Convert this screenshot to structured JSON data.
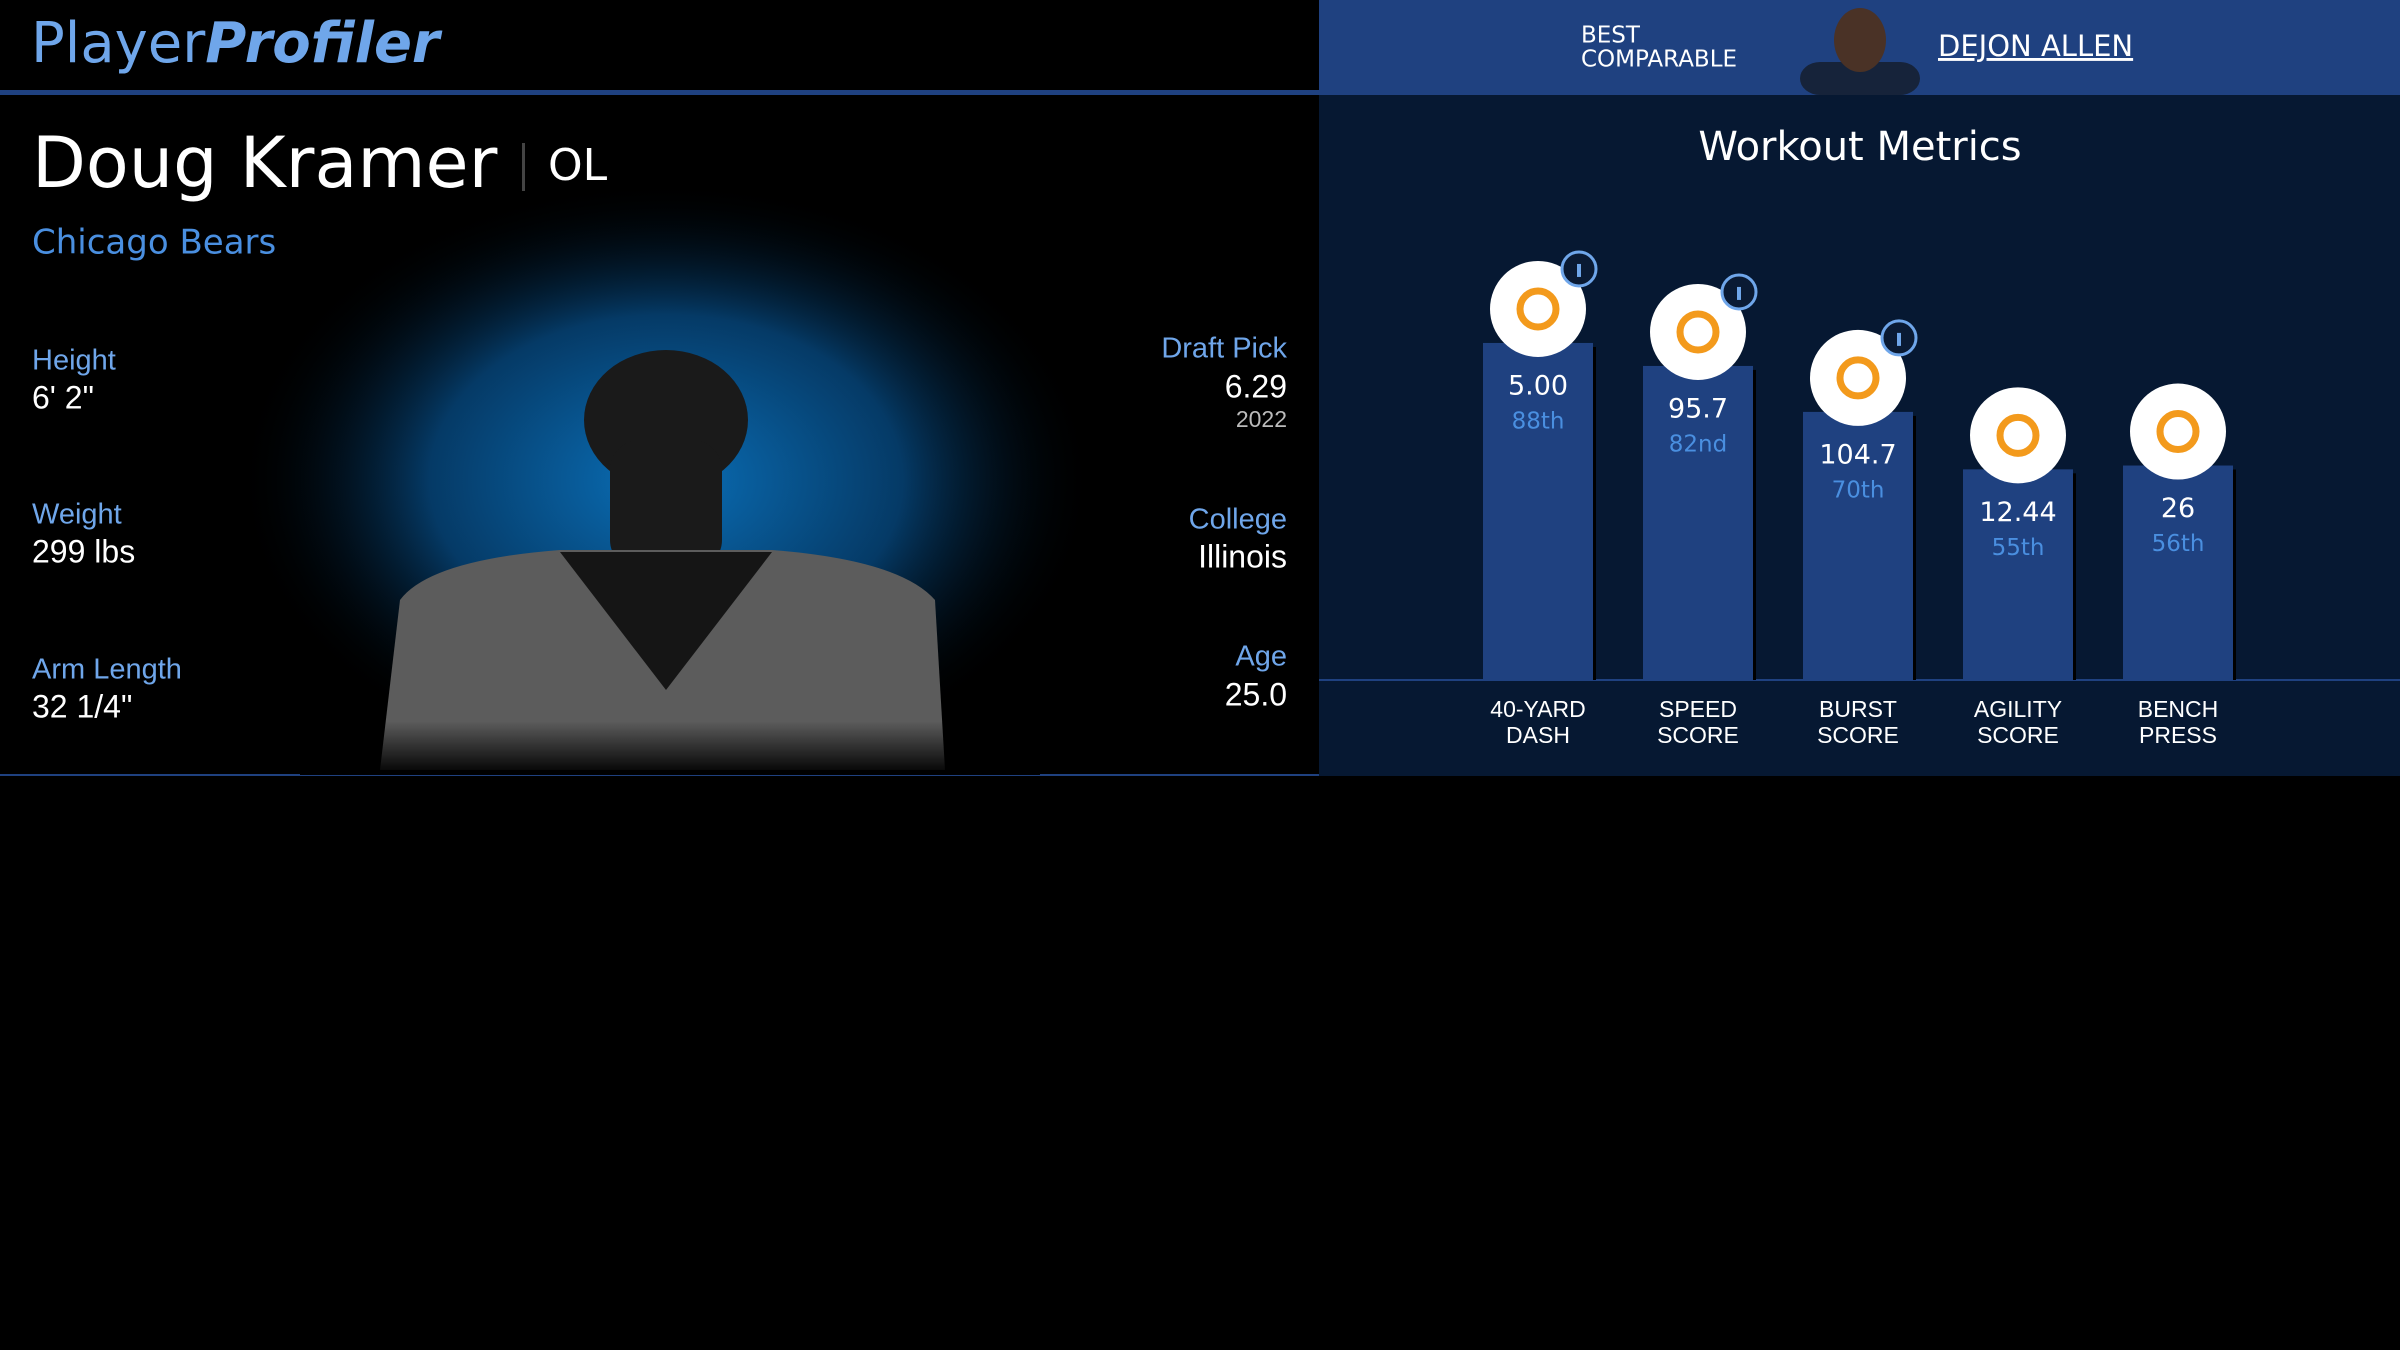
{
  "header": {
    "logo": {
      "first": "Player",
      "second": "Profiler"
    },
    "best_comparable": {
      "label_lines": [
        "BEST",
        "COMPARABLE"
      ],
      "name": "DEJON ALLEN"
    }
  },
  "player": {
    "name": "Doug Kramer",
    "position": "OL",
    "team": "Chicago Bears"
  },
  "bio_left": [
    {
      "label": "Height",
      "value": "6' 2\""
    },
    {
      "label": "Weight",
      "value": "299 lbs"
    },
    {
      "label": "Arm Length",
      "value": "32 1/4\""
    }
  ],
  "bio_right": [
    {
      "label": "Draft Pick",
      "value": "6.29",
      "sub": "2022"
    },
    {
      "label": "College",
      "value": "Illinois"
    },
    {
      "label": "Age",
      "value": "25.0"
    }
  ],
  "workout": {
    "title": "Workout Metrics",
    "metrics": [
      {
        "name_lines": [
          "40-YARD",
          "DASH"
        ],
        "value": "5.00",
        "percentile": {
          "value": 88,
          "label": "88th"
        },
        "info": true
      },
      {
        "name_lines": [
          "SPEED",
          "SCORE"
        ],
        "value": "95.7",
        "percentile": {
          "value": 82,
          "label": "82nd"
        },
        "info": true
      },
      {
        "name_lines": [
          "BURST",
          "SCORE"
        ],
        "value": "104.7",
        "percentile": {
          "value": 70,
          "label": "70th"
        },
        "info": true
      },
      {
        "name_lines": [
          "AGILITY",
          "SCORE"
        ],
        "value": "12.44",
        "percentile": {
          "value": 55,
          "label": "55th"
        },
        "info": false
      },
      {
        "name_lines": [
          "BENCH",
          "PRESS"
        ],
        "value": "26",
        "percentile": {
          "value": 56,
          "label": "56th"
        },
        "info": false
      }
    ]
  }
}
